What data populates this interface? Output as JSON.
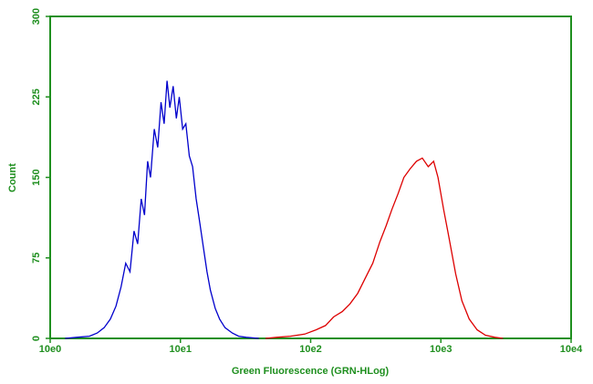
{
  "chart_data": {
    "type": "line",
    "xlabel": "Green Fluorescence (GRN-HLog)",
    "ylabel": "Count",
    "xscale": "log",
    "grid": false,
    "axis_color": "#1f8f1f",
    "xlim": [
      1,
      10000
    ],
    "xticks": [
      {
        "value": 1,
        "label": "10e0"
      },
      {
        "value": 10,
        "label": "10e1"
      },
      {
        "value": 100,
        "label": "10e2"
      },
      {
        "value": 1000,
        "label": "10e3"
      },
      {
        "value": 10000,
        "label": "10e4"
      }
    ],
    "ylim": [
      0,
      300
    ],
    "yticks": [
      0,
      75,
      150,
      225,
      300
    ],
    "series": [
      {
        "color": "#0000cc",
        "x": [
          1.3,
          1.6,
          2.0,
          2.3,
          2.6,
          2.9,
          3.2,
          3.5,
          3.8,
          4.1,
          4.4,
          4.7,
          5.0,
          5.3,
          5.6,
          5.9,
          6.3,
          6.7,
          7.1,
          7.5,
          7.9,
          8.3,
          8.8,
          9.3,
          9.8,
          10.4,
          11,
          11.7,
          12.4,
          13.2,
          14,
          15,
          16,
          17,
          18.5,
          20,
          22,
          25,
          28,
          32,
          40
        ],
        "values": [
          0,
          1,
          2,
          5,
          10,
          18,
          30,
          48,
          70,
          62,
          100,
          88,
          130,
          115,
          165,
          150,
          195,
          178,
          220,
          200,
          240,
          215,
          235,
          205,
          225,
          195,
          200,
          170,
          160,
          130,
          110,
          85,
          62,
          45,
          28,
          18,
          10,
          5,
          2,
          1,
          0
        ]
      },
      {
        "color": "#dd0000",
        "x": [
          45,
          55,
          70,
          90,
          110,
          130,
          150,
          175,
          200,
          230,
          260,
          300,
          340,
          380,
          420,
          470,
          520,
          580,
          650,
          720,
          800,
          880,
          950,
          1050,
          1150,
          1300,
          1450,
          1650,
          1900,
          2200,
          2600,
          3000
        ],
        "values": [
          0,
          1,
          2,
          4,
          8,
          12,
          20,
          25,
          32,
          42,
          55,
          70,
          90,
          105,
          120,
          135,
          150,
          158,
          165,
          168,
          160,
          165,
          150,
          120,
          95,
          60,
          35,
          18,
          8,
          3,
          1,
          0
        ]
      }
    ]
  }
}
